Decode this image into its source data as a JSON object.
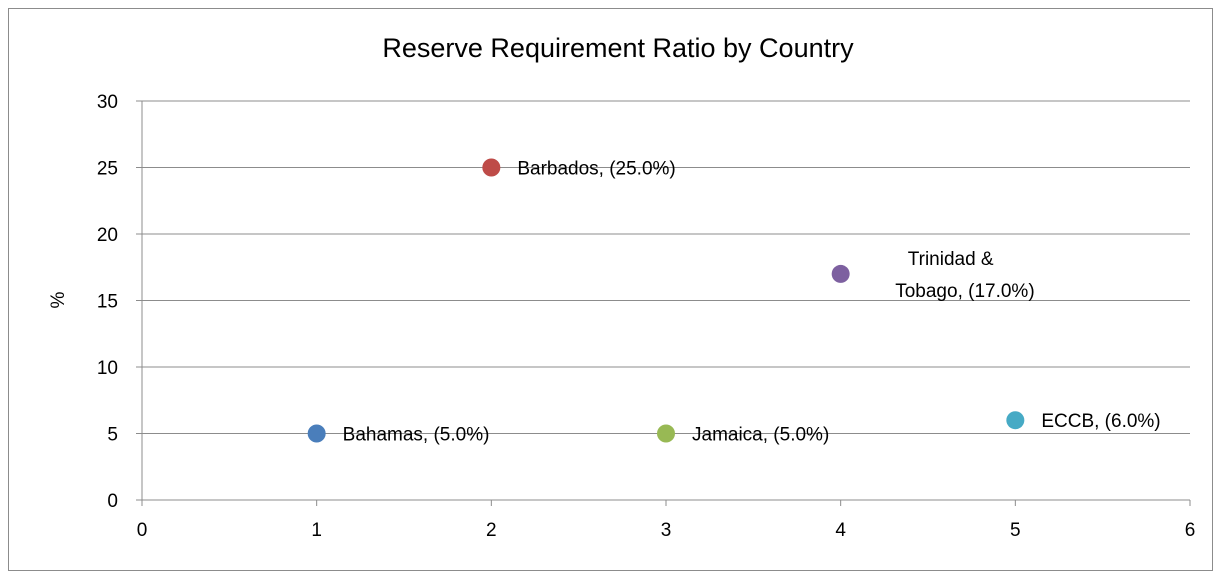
{
  "chart_data": {
    "type": "scatter",
    "title": "Reserve Requirement Ratio by Country",
    "xlabel": "",
    "ylabel": "%",
    "xlim": [
      0,
      6
    ],
    "ylim": [
      0,
      30
    ],
    "x_ticks": [
      0,
      1,
      2,
      3,
      4,
      5,
      6
    ],
    "y_ticks": [
      0,
      5,
      10,
      15,
      20,
      25,
      30
    ],
    "grid": "horizontal",
    "legend": "none",
    "points": [
      {
        "country": "Bahamas",
        "x": 1,
        "y": 5,
        "label_lines": [
          "Bahamas, (5.0%)"
        ],
        "color": "#4a7ebb"
      },
      {
        "country": "Barbados",
        "x": 2,
        "y": 25,
        "label_lines": [
          "Barbados, (25.0%)"
        ],
        "color": "#be4b48"
      },
      {
        "country": "Jamaica",
        "x": 3,
        "y": 5,
        "label_lines": [
          "Jamaica, (5.0%)"
        ],
        "color": "#98b954"
      },
      {
        "country": "Trinidad & Tobago",
        "x": 4,
        "y": 17,
        "label_lines": [
          "Trinidad &",
          "Tobago, (17.0%)"
        ],
        "color": "#7d60a0"
      },
      {
        "country": "ECCB",
        "x": 5,
        "y": 6,
        "label_lines": [
          "ECCB, (6.0%)"
        ],
        "color": "#46aac5"
      }
    ]
  }
}
